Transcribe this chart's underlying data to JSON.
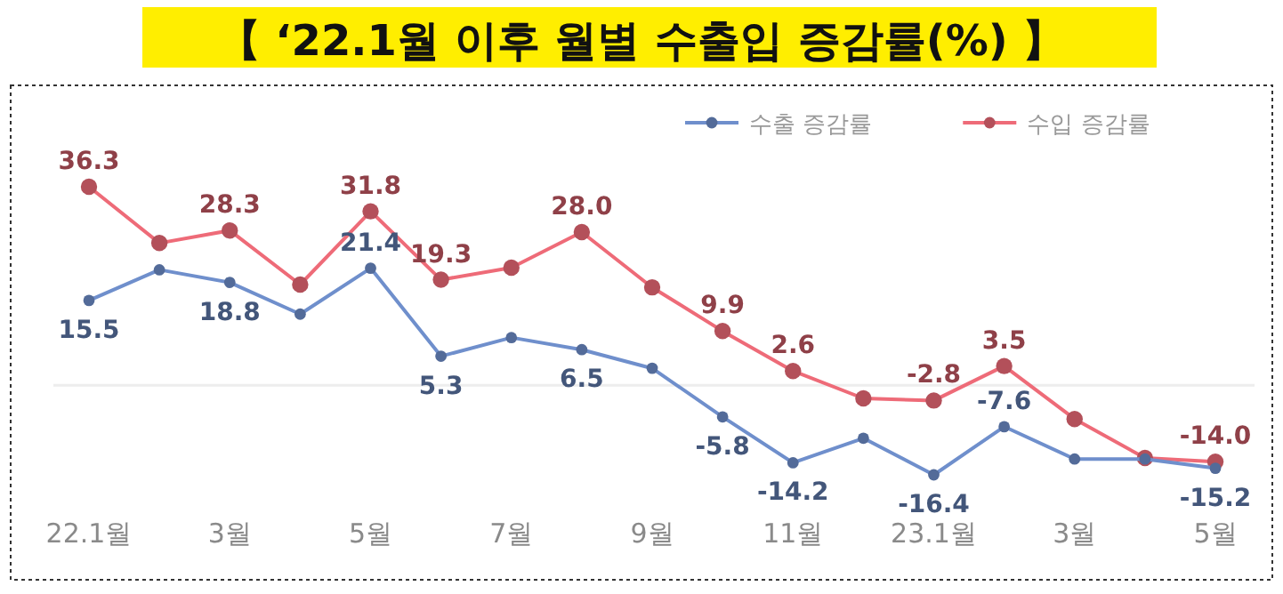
{
  "chart_data": {
    "type": "line",
    "title": "【 ‘22.1월 이후 월별 수출입 증감률(%) 】",
    "categories": [
      "22.1월",
      null,
      "3월",
      null,
      "5월",
      null,
      "7월",
      null,
      "9월",
      null,
      "11월",
      null,
      "23.1월",
      null,
      "3월",
      null,
      "5월"
    ],
    "series": [
      {
        "name": "수출 증감률",
        "color": "#6f8fcc",
        "values": [
          15.5,
          21.1,
          18.8,
          13.0,
          21.4,
          5.3,
          8.7,
          6.5,
          3.1,
          -5.8,
          -14.2,
          -9.7,
          -16.4,
          -7.6,
          -13.5,
          -13.5,
          -15.2
        ],
        "value_labels": [
          "15.5",
          null,
          "18.8",
          null,
          "21.4",
          "5.3",
          null,
          "6.5",
          null,
          "-5.8",
          "-14.2",
          null,
          "-16.4",
          "-7.6",
          null,
          null,
          "-15.2"
        ]
      },
      {
        "name": "수입 증감률",
        "color": "#ee6b78",
        "values": [
          36.3,
          26.0,
          28.3,
          18.4,
          31.8,
          19.3,
          21.5,
          28.0,
          17.9,
          9.9,
          2.6,
          -2.4,
          -2.8,
          3.5,
          -6.2,
          -13.3,
          -14.0
        ],
        "value_labels": [
          "36.3",
          null,
          "28.3",
          null,
          "31.8",
          "19.3",
          null,
          "28.0",
          null,
          "9.9",
          "2.6",
          null,
          "-2.8",
          "3.5",
          null,
          null,
          "-14.0"
        ]
      }
    ],
    "ref_lines": [
      {
        "axis": "y",
        "value": 0,
        "color": "#ededed"
      }
    ],
    "legend": "top right",
    "marker": "circle",
    "line_style": "solid"
  }
}
